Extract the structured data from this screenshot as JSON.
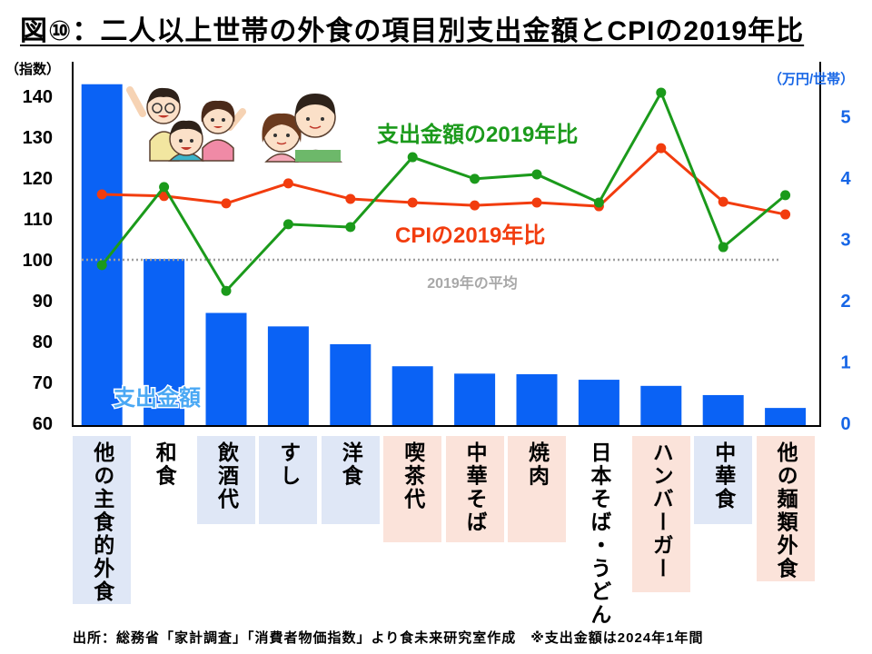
{
  "colors": {
    "bar": "#0a62f5",
    "spending_ratio_line": "#1b9a1b",
    "cpi_ratio_line": "#f23c0e",
    "reference_line": "#9e9e9e",
    "right_axis": "#1766e6",
    "bar_label": "#4aa8f4",
    "label_bg_blue": "#dfe7f6",
    "label_bg_pink": "#fbe3da"
  },
  "illustration_icons": [
    "family-cheering-icon",
    "couple-icon"
  ],
  "chart_data": {
    "type": "bar",
    "title": "図⑩：二人以上世帯の外食の項目別支出金額とCPIの2019年比",
    "categories": [
      "他の主食的外食",
      "和食",
      "飲酒代",
      "すし",
      "洋食",
      "喫茶代",
      "中華そば",
      "焼肉",
      "日本そば・うどん",
      "ハンバーガー",
      "中華食",
      "他の麺類外食"
    ],
    "category_label_bg": [
      "blue",
      "none",
      "blue",
      "blue",
      "blue",
      "pink",
      "pink",
      "pink",
      "none",
      "pink",
      "blue",
      "pink"
    ],
    "series": [
      {
        "name": "支出金額",
        "type": "bar",
        "axis": "right",
        "values": [
          5.53,
          2.68,
          1.8,
          1.58,
          1.29,
          0.93,
          0.81,
          0.8,
          0.71,
          0.61,
          0.46,
          0.25
        ]
      },
      {
        "name": "支出金額の2019年比",
        "type": "line",
        "axis": "left",
        "values": [
          98.7,
          117.8,
          92.4,
          108.7,
          108.0,
          125.1,
          119.8,
          120.9,
          114.0,
          140.9,
          103.1,
          115.8
        ]
      },
      {
        "name": "CPIの2019年比",
        "type": "line",
        "axis": "left",
        "values": [
          116.0,
          115.6,
          113.8,
          118.7,
          114.9,
          114.0,
          113.3,
          114.0,
          113.1,
          127.3,
          114.2,
          111.1
        ]
      }
    ],
    "y_left": {
      "label": "（指数）",
      "range": [
        60,
        150
      ],
      "ticks": [
        60,
        70,
        80,
        90,
        100,
        110,
        120,
        130,
        140
      ]
    },
    "y_right": {
      "label": "（万円/世帯）",
      "range": [
        0,
        6
      ],
      "ticks": [
        0,
        1,
        2,
        3,
        4,
        5
      ]
    },
    "reference_line": {
      "value": 100,
      "axis": "left",
      "label": "2019年の平均"
    },
    "grid": false,
    "legend": "none"
  },
  "source_note": "出所：総務省「家計調査」「消費者物価指数」より食未来研究室作成　※支出金額は2024年1年間"
}
